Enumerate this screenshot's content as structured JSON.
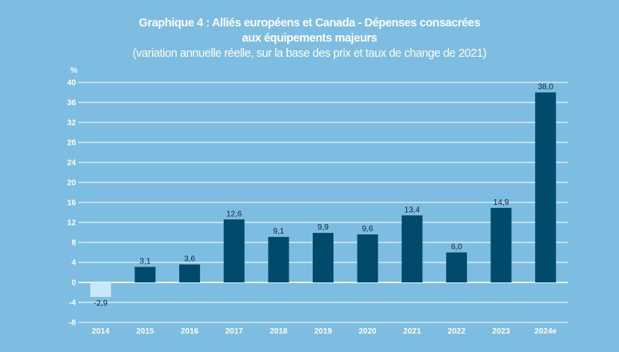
{
  "chart_data": {
    "type": "bar",
    "title": "Graphique 4 : Alliés européens et Canada - Dépenses consacrées",
    "title_line2": "aux équipements majeurs",
    "subtitle": "(variation annuelle réelle, sur la base des prix et taux de change de 2021)",
    "ylabel": "%",
    "xlabel": "",
    "categories": [
      "2014",
      "2015",
      "2016",
      "2017",
      "2018",
      "2019",
      "2020",
      "2021",
      "2022",
      "2023",
      "2024e"
    ],
    "values": [
      -2.9,
      3.1,
      3.6,
      12.6,
      9.1,
      9.9,
      9.6,
      13.4,
      6.0,
      14.9,
      38.0
    ],
    "data_labels": [
      "-2,9",
      "3,1",
      "3,6",
      "12,6",
      "9,1",
      "9,9",
      "9,6",
      "13,4",
      "6,0",
      "14,9",
      "38,0"
    ],
    "ylim": [
      -8,
      40
    ],
    "yticks": [
      -8,
      -4,
      0,
      4,
      8,
      12,
      16,
      20,
      24,
      28,
      32,
      36,
      40
    ],
    "grid": true,
    "colors": {
      "positive": "#004a6b",
      "negative": "#c8e8f8",
      "background": "#7cbde1",
      "grid": "#ffffff"
    }
  }
}
